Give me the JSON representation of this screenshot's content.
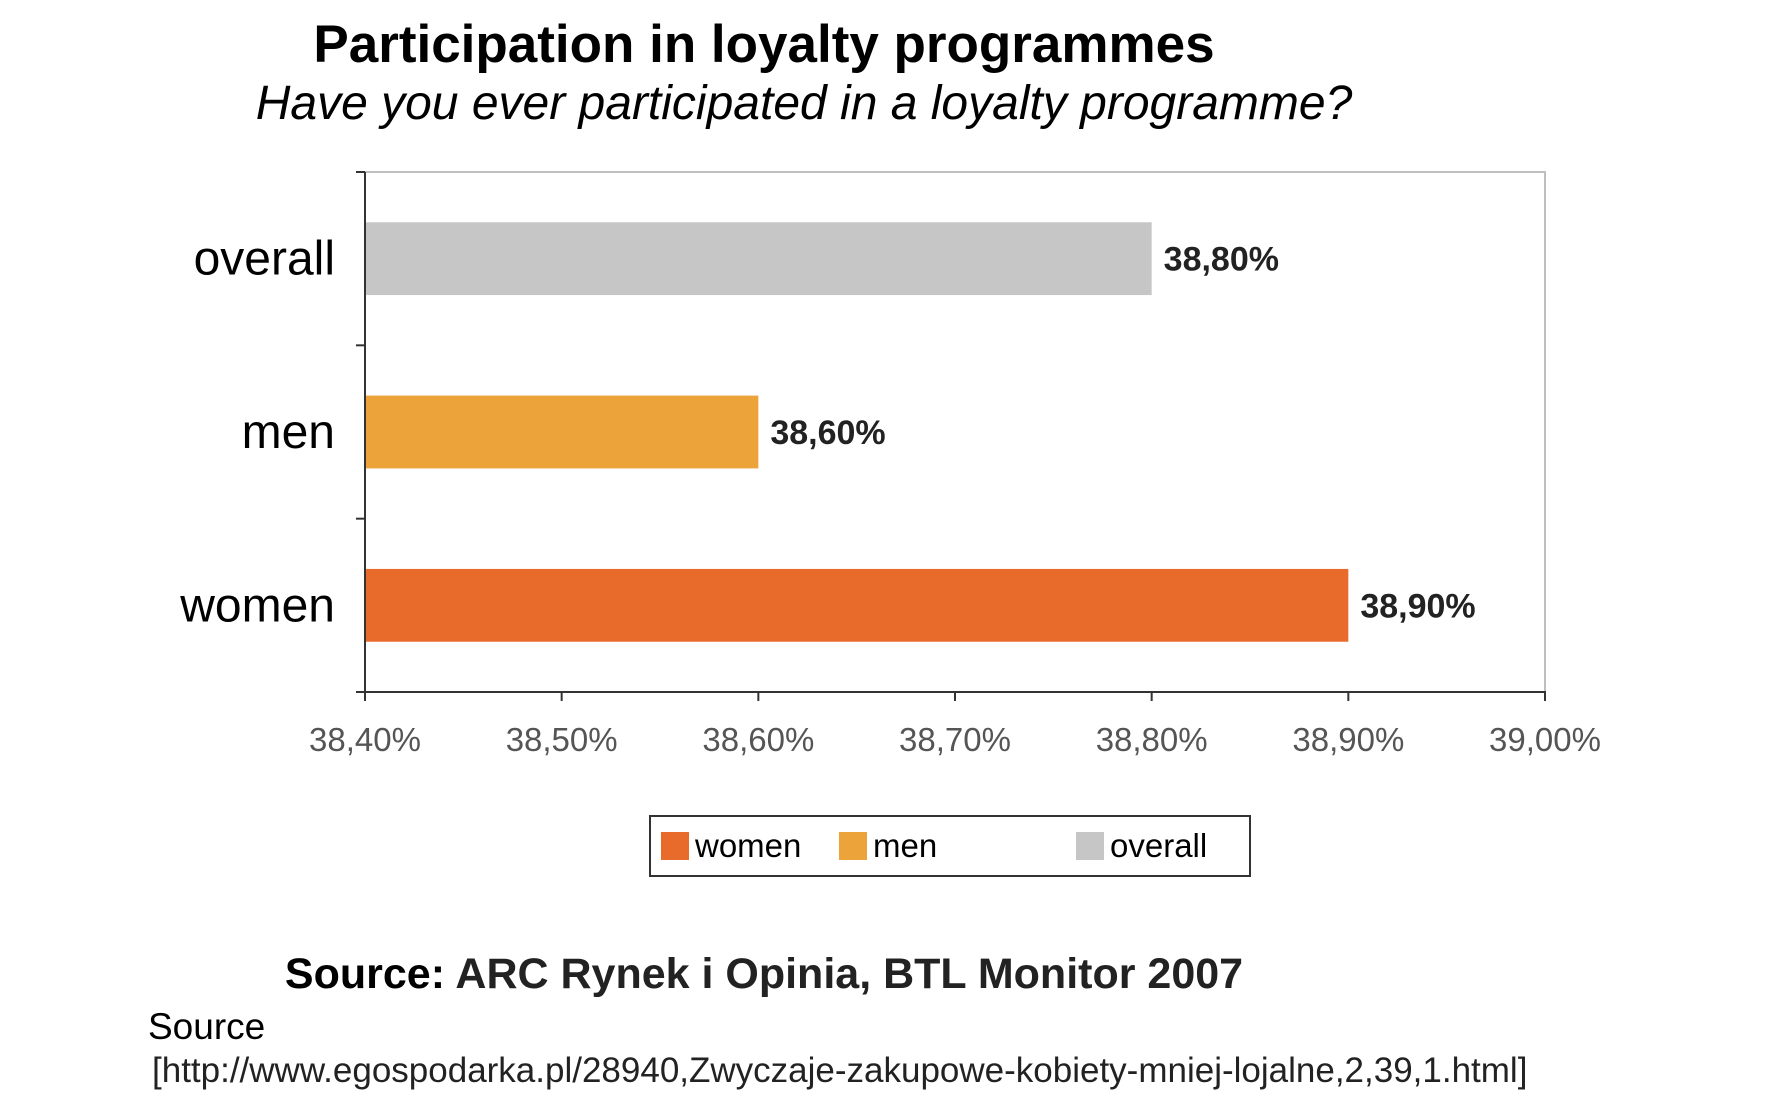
{
  "chart_data": {
    "type": "bar",
    "orientation": "horizontal",
    "title": "Participation in loyalty programmes",
    "subtitle": "Have you ever participated in a loyalty programme?",
    "categories": [
      "overall",
      "men",
      "women"
    ],
    "values": [
      38.8,
      38.6,
      38.9
    ],
    "value_labels": [
      "38,80%",
      "38,60%",
      "38,90%"
    ],
    "colors": [
      "#c6c6c6",
      "#eca33a",
      "#e96b2c"
    ],
    "xlim": [
      38.4,
      39.0
    ],
    "xticks": [
      38.4,
      38.5,
      38.6,
      38.7,
      38.8,
      38.9,
      39.0
    ],
    "xtick_labels": [
      "38,40%",
      "38,50%",
      "38,60%",
      "38,70%",
      "38,80%",
      "38,90%",
      "39,00%"
    ],
    "xlabel": "",
    "ylabel": "",
    "grid": false,
    "legend_position": "bottom",
    "legend": [
      {
        "label": "women",
        "color": "#e96b2c"
      },
      {
        "label": "men",
        "color": "#eca33a"
      },
      {
        "label": "overall",
        "color": "#c6c6c6"
      }
    ]
  },
  "source": {
    "prefix": "Source:",
    "value": "ARC Rynek i Opinia, BTL Monitor 2007",
    "label": "Source",
    "url": "[http://www.egospodarka.pl/28940,Zwyczaje-zakupowe-kobiety-mniej-lojalne,2,39,1.html]"
  }
}
